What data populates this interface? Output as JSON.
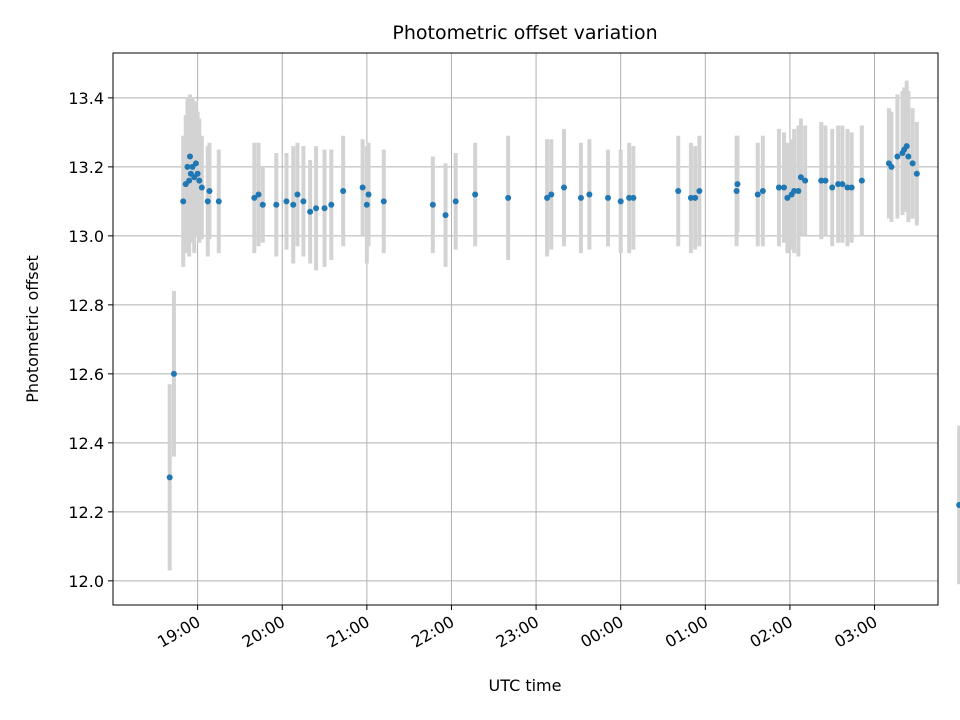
{
  "chart_data": {
    "type": "scatter",
    "title": "Photometric offset variation",
    "xlabel": "UTC time",
    "ylabel": "Photometric offset",
    "grid": true,
    "x_unit": "hours",
    "xlim": [
      18.0,
      27.75
    ],
    "ylim": [
      11.93,
      13.53
    ],
    "x_ticks": [
      {
        "value": 19,
        "label": "19:00"
      },
      {
        "value": 20,
        "label": "20:00"
      },
      {
        "value": 21,
        "label": "21:00"
      },
      {
        "value": 22,
        "label": "22:00"
      },
      {
        "value": 23,
        "label": "23:00"
      },
      {
        "value": 24,
        "label": "00:00"
      },
      {
        "value": 25,
        "label": "01:00"
      },
      {
        "value": 26,
        "label": "02:00"
      },
      {
        "value": 27,
        "label": "03:00"
      }
    ],
    "y_ticks": [
      {
        "value": 12.0,
        "label": "12.0"
      },
      {
        "value": 12.2,
        "label": "12.2"
      },
      {
        "value": 12.4,
        "label": "12.4"
      },
      {
        "value": 12.6,
        "label": "12.6"
      },
      {
        "value": 12.8,
        "label": "12.8"
      },
      {
        "value": 13.0,
        "label": "13.0"
      },
      {
        "value": 13.2,
        "label": "13.2"
      },
      {
        "value": 13.4,
        "label": "13.4"
      }
    ],
    "colors": {
      "point": "#1f77b4",
      "errorbar": "#d3d3d3",
      "grid": "#b0b0b0"
    },
    "points": [
      [
        18.67,
        12.3,
        0.27
      ],
      [
        18.72,
        12.6,
        0.24
      ],
      [
        18.83,
        13.1,
        0.19
      ],
      [
        18.86,
        13.15,
        0.2
      ],
      [
        18.88,
        13.2,
        0.2
      ],
      [
        18.9,
        13.16,
        0.22
      ],
      [
        18.91,
        13.23,
        0.18
      ],
      [
        18.92,
        13.18,
        0.2
      ],
      [
        18.94,
        13.2,
        0.2
      ],
      [
        18.96,
        13.17,
        0.22
      ],
      [
        18.98,
        13.21,
        0.18
      ],
      [
        19.0,
        13.18,
        0.18
      ],
      [
        19.02,
        13.16,
        0.18
      ],
      [
        19.05,
        13.14,
        0.15
      ],
      [
        19.12,
        13.1,
        0.16
      ],
      [
        19.14,
        13.13,
        0.14
      ],
      [
        19.25,
        13.1,
        0.15
      ],
      [
        19.67,
        13.11,
        0.16
      ],
      [
        19.72,
        13.12,
        0.15
      ],
      [
        19.77,
        13.09,
        0.11
      ],
      [
        19.93,
        13.09,
        0.15
      ],
      [
        20.05,
        13.1,
        0.14
      ],
      [
        20.13,
        13.09,
        0.17
      ],
      [
        20.18,
        13.12,
        0.15
      ],
      [
        20.25,
        13.1,
        0.16
      ],
      [
        20.33,
        13.07,
        0.15
      ],
      [
        20.4,
        13.08,
        0.18
      ],
      [
        20.5,
        13.08,
        0.17
      ],
      [
        20.58,
        13.09,
        0.16
      ],
      [
        20.72,
        13.13,
        0.16
      ],
      [
        20.95,
        13.14,
        0.14
      ],
      [
        21.0,
        13.09,
        0.17
      ],
      [
        21.02,
        13.12,
        0.15
      ],
      [
        21.2,
        13.1,
        0.15
      ],
      [
        21.78,
        13.09,
        0.14
      ],
      [
        21.93,
        13.06,
        0.15
      ],
      [
        22.05,
        13.1,
        0.14
      ],
      [
        22.28,
        13.12,
        0.15
      ],
      [
        22.67,
        13.11,
        0.18
      ],
      [
        23.13,
        13.11,
        0.17
      ],
      [
        23.18,
        13.12,
        0.16
      ],
      [
        23.33,
        13.14,
        0.17
      ],
      [
        23.53,
        13.11,
        0.16
      ],
      [
        23.63,
        13.12,
        0.16
      ],
      [
        23.85,
        13.11,
        0.14
      ],
      [
        24.0,
        13.1,
        0.15
      ],
      [
        24.1,
        13.11,
        0.16
      ],
      [
        24.15,
        13.11,
        0.15
      ],
      [
        24.68,
        13.13,
        0.16
      ],
      [
        24.83,
        13.11,
        0.16
      ],
      [
        24.88,
        13.11,
        0.15
      ],
      [
        24.93,
        13.13,
        0.16
      ],
      [
        25.37,
        13.13,
        0.16
      ],
      [
        25.38,
        13.15,
        0.14
      ],
      [
        25.62,
        13.12,
        0.15
      ],
      [
        25.68,
        13.13,
        0.16
      ],
      [
        25.87,
        13.14,
        0.17
      ],
      [
        25.93,
        13.14,
        0.16
      ],
      [
        25.97,
        13.11,
        0.16
      ],
      [
        26.02,
        13.12,
        0.16
      ],
      [
        26.05,
        13.13,
        0.18
      ],
      [
        26.1,
        13.13,
        0.19
      ],
      [
        26.13,
        13.17,
        0.17
      ],
      [
        26.18,
        13.16,
        0.16
      ],
      [
        26.37,
        13.16,
        0.17
      ],
      [
        26.42,
        13.16,
        0.16
      ],
      [
        26.5,
        13.14,
        0.17
      ],
      [
        26.57,
        13.15,
        0.17
      ],
      [
        26.62,
        13.15,
        0.17
      ],
      [
        26.68,
        13.14,
        0.17
      ],
      [
        26.73,
        13.14,
        0.16
      ],
      [
        26.85,
        13.16,
        0.16
      ],
      [
        27.17,
        13.21,
        0.16
      ],
      [
        27.2,
        13.2,
        0.16
      ],
      [
        27.27,
        13.23,
        0.18
      ],
      [
        27.33,
        13.24,
        0.18
      ],
      [
        27.35,
        13.25,
        0.18
      ],
      [
        27.38,
        13.26,
        0.19
      ],
      [
        27.4,
        13.23,
        0.19
      ],
      [
        27.45,
        13.21,
        0.16
      ],
      [
        27.5,
        13.18,
        0.15
      ],
      [
        28.0,
        12.22,
        0.23
      ]
    ]
  }
}
